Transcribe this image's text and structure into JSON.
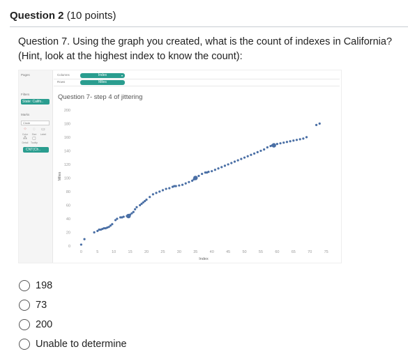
{
  "question": {
    "number_label": "Question 2",
    "points_label": "(10 points)",
    "prompt": "Question 7. Using the graph you created, what is the count of indexes in California? (Hint, look at the highest index to know the count):"
  },
  "tableau": {
    "pages_label": "Pages",
    "filters_label": "Filters",
    "filter_pill": "State: Califo..",
    "marks_label": "Marks",
    "marks_type": "Circle",
    "mark_cards": [
      "Color",
      "Size",
      "Label",
      "Detail",
      "Tooltip"
    ],
    "marks_pill": "CNT(Ch..",
    "columns_label": "Columns",
    "rows_label": "Rows",
    "columns_pill": "Index",
    "rows_pill": "Miles",
    "sheet_title": "Question 7- step 4 of jittering",
    "accent_color": "#2a9d8f",
    "point_color": "#4a6fa5"
  },
  "chart_data": {
    "type": "scatter",
    "title": "Question 7- step 4 of jittering",
    "xlabel": "Index",
    "ylabel": "Miles",
    "xlim": [
      -2,
      77
    ],
    "ylim": [
      0,
      205
    ],
    "x_ticks": [
      0,
      5,
      10,
      15,
      20,
      25,
      30,
      35,
      40,
      45,
      50,
      55,
      60,
      65,
      70,
      75
    ],
    "y_ticks": [
      0,
      20,
      40,
      60,
      80,
      100,
      120,
      140,
      160,
      180,
      200
    ],
    "grid": false,
    "series": [
      {
        "points": [
          [
            0,
            2
          ],
          [
            1,
            10
          ],
          [
            4,
            20
          ],
          [
            5,
            22
          ],
          [
            5.5,
            24
          ],
          [
            6,
            24
          ],
          [
            6.5,
            25
          ],
          [
            7,
            26
          ],
          [
            7.5,
            26
          ],
          [
            8,
            27
          ],
          [
            8.5,
            28
          ],
          [
            9,
            30
          ],
          [
            9.5,
            32
          ],
          [
            10.5,
            38
          ],
          [
            11,
            40
          ],
          [
            12,
            42
          ],
          [
            12.5,
            42
          ],
          [
            13,
            43
          ],
          [
            14,
            44
          ],
          [
            14.5,
            44
          ],
          [
            15,
            46
          ],
          [
            15.5,
            48
          ],
          [
            16,
            50
          ],
          [
            16.5,
            54
          ],
          [
            17,
            57
          ],
          [
            18,
            60
          ],
          [
            18.5,
            62
          ],
          [
            19,
            64
          ],
          [
            19.5,
            66
          ],
          [
            20,
            68
          ],
          [
            21,
            72
          ],
          [
            22,
            76
          ],
          [
            23,
            78
          ],
          [
            24,
            80
          ],
          [
            25,
            82
          ],
          [
            26,
            84
          ],
          [
            27,
            85
          ],
          [
            28,
            87
          ],
          [
            28.5,
            88
          ],
          [
            29,
            88
          ],
          [
            30,
            89
          ],
          [
            31,
            90
          ],
          [
            32,
            92
          ],
          [
            33,
            94
          ],
          [
            34,
            96
          ],
          [
            34.5,
            98
          ],
          [
            35,
            100
          ],
          [
            36,
            103
          ],
          [
            37,
            106
          ],
          [
            38,
            108
          ],
          [
            38.5,
            108
          ],
          [
            39,
            109
          ],
          [
            40,
            110
          ],
          [
            41,
            112
          ],
          [
            42,
            114
          ],
          [
            43,
            116
          ],
          [
            44,
            118
          ],
          [
            45,
            120
          ],
          [
            46,
            122
          ],
          [
            47,
            124
          ],
          [
            48,
            126
          ],
          [
            49,
            128
          ],
          [
            50,
            130
          ],
          [
            51,
            132
          ],
          [
            52,
            134
          ],
          [
            53,
            136
          ],
          [
            54,
            138
          ],
          [
            55,
            140
          ],
          [
            56,
            142
          ],
          [
            57,
            145
          ],
          [
            58,
            147
          ],
          [
            58.5,
            148
          ],
          [
            59,
            148
          ],
          [
            60,
            150
          ],
          [
            61,
            151
          ],
          [
            62,
            152
          ],
          [
            63,
            153
          ],
          [
            64,
            154
          ],
          [
            65,
            155
          ],
          [
            66,
            156
          ],
          [
            67,
            157
          ],
          [
            68,
            158
          ],
          [
            69,
            160
          ],
          [
            72,
            178
          ],
          [
            73,
            180
          ]
        ],
        "large_points": [
          [
            14.5,
            44
          ],
          [
            35,
            100
          ],
          [
            59,
            148
          ]
        ]
      }
    ]
  },
  "options": [
    "198",
    "73",
    "200",
    "Unable to determine"
  ]
}
